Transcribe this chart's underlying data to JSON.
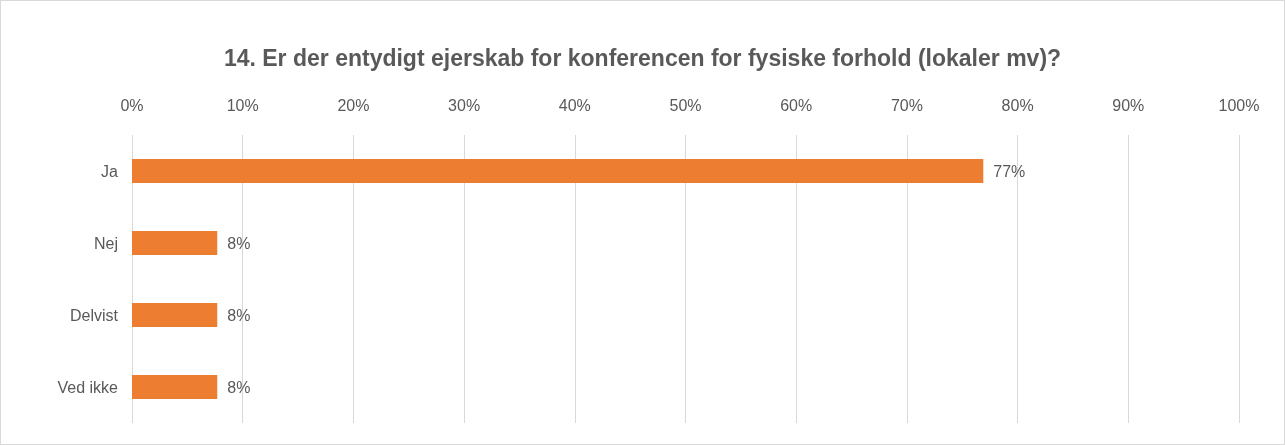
{
  "chart_data": {
    "type": "bar",
    "orientation": "horizontal",
    "title": "14. Er der entydigt ejerskab for konferencen for fysiske forhold (lokaler mv)?",
    "categories": [
      "Ja",
      "Nej",
      "Delvist",
      "Ved ikke"
    ],
    "values": [
      76.9,
      7.7,
      7.7,
      7.7
    ],
    "color": "#ed7d31",
    "value_labels": [
      "77%",
      "8%",
      "8%",
      "8%"
    ],
    "xlim": [
      0,
      100
    ],
    "xticks": [
      {
        "value": 0,
        "label": "0%"
      },
      {
        "value": 10,
        "label": "10%"
      },
      {
        "value": 20,
        "label": "20%"
      },
      {
        "value": 30,
        "label": "30%"
      },
      {
        "value": 40,
        "label": "40%"
      },
      {
        "value": 50,
        "label": "50%"
      },
      {
        "value": 60,
        "label": "60%"
      },
      {
        "value": 70,
        "label": "70%"
      },
      {
        "value": 80,
        "label": "80%"
      },
      {
        "value": 90,
        "label": "90%"
      },
      {
        "value": 100,
        "label": "100%"
      }
    ],
    "grid": "x"
  }
}
